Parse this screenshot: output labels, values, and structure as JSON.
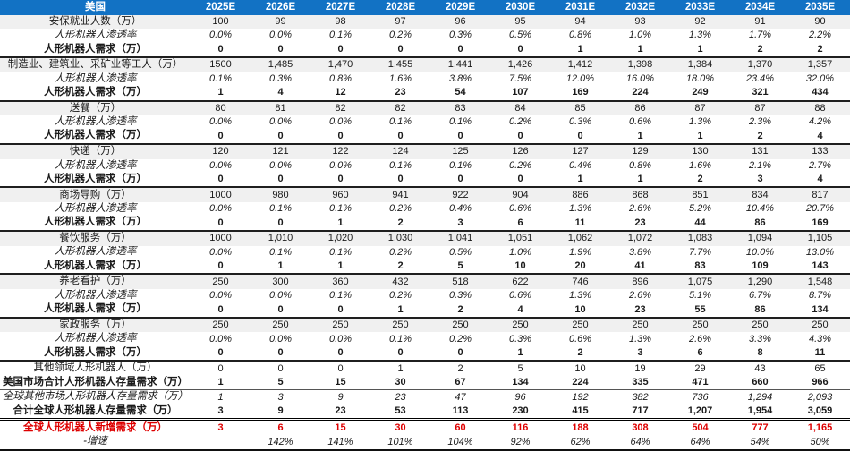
{
  "colors": {
    "header_bg": "#1272C4",
    "header_text": "#FFFFFF",
    "base_row_bg": "#F0F0F0",
    "highlight_red": "#DE0000",
    "body_text": "#1A1A1A"
  },
  "chart_data": {
    "type": "table",
    "corner_label": "美国",
    "columns": [
      "2025E",
      "2026E",
      "2027E",
      "2028E",
      "2029E",
      "2030E",
      "2031E",
      "2032E",
      "2033E",
      "2034E",
      "2035E"
    ],
    "rows": [
      {
        "label": "安保就业人数（万）",
        "style": "base",
        "sep": null,
        "values": [
          "100",
          "99",
          "98",
          "97",
          "96",
          "95",
          "94",
          "93",
          "92",
          "91",
          "90"
        ]
      },
      {
        "label": "人形机器人渗透率",
        "style": "pen",
        "sep": null,
        "values": [
          "0.0%",
          "0.0%",
          "0.1%",
          "0.2%",
          "0.3%",
          "0.5%",
          "0.8%",
          "1.0%",
          "1.3%",
          "1.7%",
          "2.2%"
        ]
      },
      {
        "label": "人形机器人需求（万）",
        "style": "dem",
        "sep": null,
        "values": [
          "0",
          "0",
          "0",
          "0",
          "0",
          "0",
          "1",
          "1",
          "1",
          "2",
          "2"
        ]
      },
      {
        "label": "制造业、建筑业、采矿业等工人（万）",
        "style": "base",
        "sep": "thick",
        "values": [
          "1500",
          "1,485",
          "1,470",
          "1,455",
          "1,441",
          "1,426",
          "1,412",
          "1,398",
          "1,384",
          "1,370",
          "1,357"
        ]
      },
      {
        "label": "人形机器人渗透率",
        "style": "pen",
        "sep": null,
        "values": [
          "0.1%",
          "0.3%",
          "0.8%",
          "1.6%",
          "3.8%",
          "7.5%",
          "12.0%",
          "16.0%",
          "18.0%",
          "23.4%",
          "32.0%"
        ]
      },
      {
        "label": "人形机器人需求（万）",
        "style": "dem",
        "sep": null,
        "values": [
          "1",
          "4",
          "12",
          "23",
          "54",
          "107",
          "169",
          "224",
          "249",
          "321",
          "434"
        ]
      },
      {
        "label": "送餐（万）",
        "style": "base",
        "sep": "thick",
        "values": [
          "80",
          "81",
          "82",
          "82",
          "83",
          "84",
          "85",
          "86",
          "87",
          "87",
          "88"
        ]
      },
      {
        "label": "人形机器人渗透率",
        "style": "pen",
        "sep": null,
        "values": [
          "0.0%",
          "0.0%",
          "0.0%",
          "0.1%",
          "0.1%",
          "0.2%",
          "0.3%",
          "0.6%",
          "1.3%",
          "2.3%",
          "4.2%"
        ]
      },
      {
        "label": "人形机器人需求（万）",
        "style": "dem",
        "sep": null,
        "values": [
          "0",
          "0",
          "0",
          "0",
          "0",
          "0",
          "0",
          "1",
          "1",
          "2",
          "4"
        ]
      },
      {
        "label": "快递（万）",
        "style": "base",
        "sep": "thick",
        "values": [
          "120",
          "121",
          "122",
          "124",
          "125",
          "126",
          "127",
          "129",
          "130",
          "131",
          "133"
        ]
      },
      {
        "label": "人形机器人渗透率",
        "style": "pen",
        "sep": null,
        "values": [
          "0.0%",
          "0.0%",
          "0.0%",
          "0.1%",
          "0.1%",
          "0.2%",
          "0.4%",
          "0.8%",
          "1.6%",
          "2.1%",
          "2.7%"
        ]
      },
      {
        "label": "人形机器人需求（万）",
        "style": "dem",
        "sep": null,
        "values": [
          "0",
          "0",
          "0",
          "0",
          "0",
          "0",
          "1",
          "1",
          "2",
          "3",
          "4"
        ]
      },
      {
        "label": "商场导购（万）",
        "style": "base",
        "sep": "thick",
        "values": [
          "1000",
          "980",
          "960",
          "941",
          "922",
          "904",
          "886",
          "868",
          "851",
          "834",
          "817"
        ]
      },
      {
        "label": "人形机器人渗透率",
        "style": "pen",
        "sep": null,
        "values": [
          "0.0%",
          "0.1%",
          "0.1%",
          "0.2%",
          "0.4%",
          "0.6%",
          "1.3%",
          "2.6%",
          "5.2%",
          "10.4%",
          "20.7%"
        ]
      },
      {
        "label": "人形机器人需求（万）",
        "style": "dem",
        "sep": null,
        "values": [
          "0",
          "0",
          "1",
          "2",
          "3",
          "6",
          "11",
          "23",
          "44",
          "86",
          "169"
        ]
      },
      {
        "label": "餐饮服务（万）",
        "style": "base",
        "sep": "thick",
        "values": [
          "1000",
          "1,010",
          "1,020",
          "1,030",
          "1,041",
          "1,051",
          "1,062",
          "1,072",
          "1,083",
          "1,094",
          "1,105"
        ]
      },
      {
        "label": "人形机器人渗透率",
        "style": "pen",
        "sep": null,
        "values": [
          "0.0%",
          "0.1%",
          "0.1%",
          "0.2%",
          "0.5%",
          "1.0%",
          "1.9%",
          "3.8%",
          "7.7%",
          "10.0%",
          "13.0%"
        ]
      },
      {
        "label": "人形机器人需求（万）",
        "style": "dem",
        "sep": null,
        "values": [
          "0",
          "1",
          "1",
          "2",
          "5",
          "10",
          "20",
          "41",
          "83",
          "109",
          "143"
        ]
      },
      {
        "label": "养老看护（万）",
        "style": "base",
        "sep": "thick",
        "values": [
          "250",
          "300",
          "360",
          "432",
          "518",
          "622",
          "746",
          "896",
          "1,075",
          "1,290",
          "1,548"
        ]
      },
      {
        "label": "人形机器人渗透率",
        "style": "pen",
        "sep": null,
        "values": [
          "0.0%",
          "0.0%",
          "0.1%",
          "0.2%",
          "0.3%",
          "0.6%",
          "1.3%",
          "2.6%",
          "5.1%",
          "6.7%",
          "8.7%"
        ]
      },
      {
        "label": "人形机器人需求（万）",
        "style": "dem",
        "sep": null,
        "values": [
          "0",
          "0",
          "0",
          "1",
          "2",
          "4",
          "10",
          "23",
          "55",
          "86",
          "134"
        ]
      },
      {
        "label": "家政服务（万）",
        "style": "base",
        "sep": "thick",
        "values": [
          "250",
          "250",
          "250",
          "250",
          "250",
          "250",
          "250",
          "250",
          "250",
          "250",
          "250"
        ]
      },
      {
        "label": "人形机器人渗透率",
        "style": "pen",
        "sep": null,
        "values": [
          "0.0%",
          "0.0%",
          "0.0%",
          "0.1%",
          "0.2%",
          "0.3%",
          "0.6%",
          "1.3%",
          "2.6%",
          "3.3%",
          "4.3%"
        ]
      },
      {
        "label": "人形机器人需求（万）",
        "style": "dem",
        "sep": null,
        "values": [
          "0",
          "0",
          "0",
          "0",
          "0",
          "1",
          "2",
          "3",
          "6",
          "8",
          "11"
        ]
      },
      {
        "label": "其他领域人形机器人（万）",
        "style": "other",
        "sep": "thick",
        "values": [
          "0",
          "0",
          "0",
          "1",
          "2",
          "5",
          "10",
          "19",
          "29",
          "43",
          "65"
        ]
      },
      {
        "label": "美国市场合计人形机器人存量需求（万）",
        "style": "us_total",
        "sep": null,
        "values": [
          "1",
          "5",
          "15",
          "30",
          "67",
          "134",
          "224",
          "335",
          "471",
          "660",
          "966"
        ]
      },
      {
        "label": "全球其他市场人形机器人存量需求（万）",
        "style": "global_other",
        "sep": "thin",
        "values": [
          "1",
          "3",
          "9",
          "23",
          "47",
          "96",
          "192",
          "382",
          "736",
          "1,294",
          "2,093"
        ]
      },
      {
        "label": "合计全球人形机器人存量需求（万）",
        "style": "global_total",
        "sep": null,
        "values": [
          "3",
          "9",
          "23",
          "53",
          "113",
          "230",
          "415",
          "717",
          "1,207",
          "1,954",
          "3,059"
        ]
      },
      {
        "label": "全球人形机器人新增需求（万）",
        "style": "global_new",
        "sep": "double",
        "values": [
          "3",
          "6",
          "15",
          "30",
          "60",
          "116",
          "188",
          "308",
          "504",
          "777",
          "1,165"
        ]
      },
      {
        "label": "-增速",
        "style": "growth",
        "sep": null,
        "values": [
          "",
          "142%",
          "141%",
          "101%",
          "104%",
          "92%",
          "62%",
          "64%",
          "64%",
          "54%",
          "50%"
        ]
      }
    ]
  }
}
